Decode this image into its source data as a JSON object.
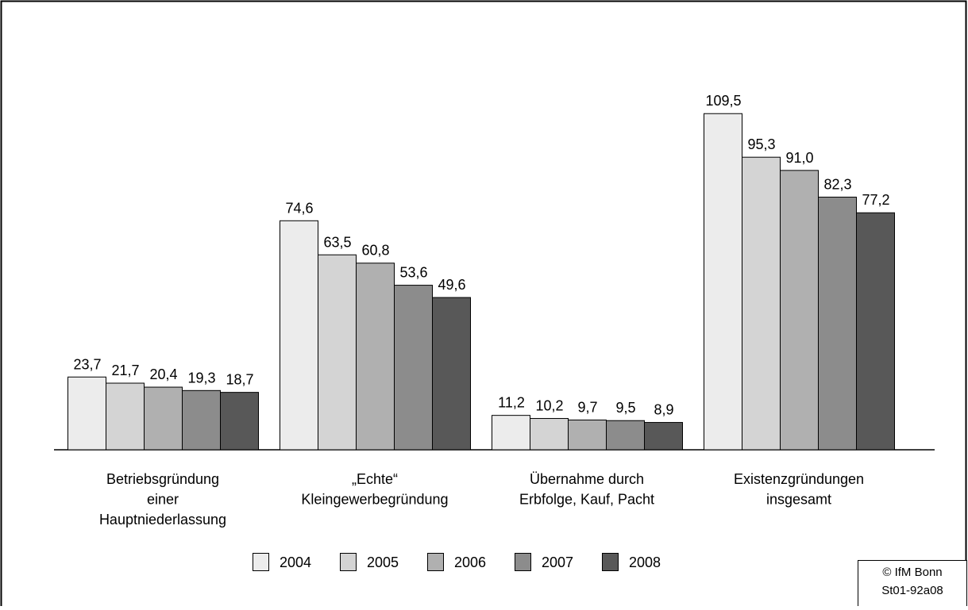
{
  "chart_data": {
    "type": "bar",
    "categories": [
      [
        "Betriebsgründung",
        "einer",
        "Hauptniederlassung"
      ],
      [
        "„Echte“",
        "Kleingewerbegründung"
      ],
      [
        "Übernahme durch",
        "Erbfolge, Kauf, Pacht"
      ],
      [
        "Existenzgründungen",
        "insgesamt"
      ]
    ],
    "series": [
      {
        "name": "2004",
        "color": "#ececec",
        "values": [
          23.7,
          74.6,
          11.2,
          109.5
        ],
        "value_labels": [
          "23,7",
          "74,6",
          "11,2",
          "109,5"
        ]
      },
      {
        "name": "2005",
        "color": "#d4d4d4",
        "values": [
          21.7,
          63.5,
          10.2,
          95.3
        ],
        "value_labels": [
          "21,7",
          "63,5",
          "10,2",
          "95,3"
        ]
      },
      {
        "name": "2006",
        "color": "#b0b0b0",
        "values": [
          20.4,
          60.8,
          9.7,
          91.0
        ],
        "value_labels": [
          "20,4",
          "60,8",
          "9,7",
          "91,0"
        ]
      },
      {
        "name": "2007",
        "color": "#8c8c8c",
        "values": [
          19.3,
          53.6,
          9.5,
          82.3
        ],
        "value_labels": [
          "19,3",
          "53,6",
          "9,5",
          "82,3"
        ]
      },
      {
        "name": "2008",
        "color": "#585858",
        "values": [
          18.7,
          49.6,
          8.9,
          77.2
        ],
        "value_labels": [
          "18,7",
          "49,6",
          "8,9",
          "77,2"
        ]
      }
    ],
    "source": [
      "© IfM Bonn",
      "St01-92a08"
    ]
  }
}
